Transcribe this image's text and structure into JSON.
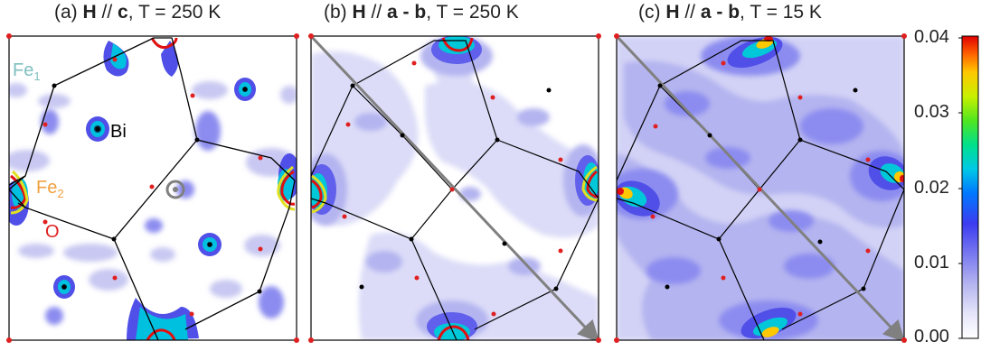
{
  "panels": [
    {
      "tag": "(a)",
      "field": "H",
      "sep": " // ",
      "dir": "c",
      "cond": ", T = 250 K"
    },
    {
      "tag": "(b)",
      "field": "H",
      "sep": " // ",
      "dir": "a - b",
      "cond": ", T = 250 K"
    },
    {
      "tag": "(c)",
      "field": "H",
      "sep": " // ",
      "dir": "a - b",
      "cond": ", T = 15 K"
    }
  ],
  "atom_labels": {
    "fe1": "Fe",
    "fe1_sub": "1",
    "bi": "Bi",
    "fe2": "Fe",
    "fe2_sub": "2",
    "o": "O"
  },
  "colorbar": {
    "ticks": [
      "0.04",
      "0.03",
      "0.02",
      "0.01",
      "0.00"
    ],
    "stops": [
      "#ffffff",
      "#c8c8f0",
      "#8c8cf0",
      "#3c3cf0",
      "#00a0ff",
      "#00e0d0",
      "#40e040",
      "#c8f000",
      "#ffd000",
      "#ff6000",
      "#e00000"
    ]
  },
  "colors": {
    "fe1": "#7fbfbf",
    "bi": "#000000",
    "fe2": "#f0a040",
    "o": "#e02020",
    "frame": "#000000",
    "arrow": "#808080"
  }
}
